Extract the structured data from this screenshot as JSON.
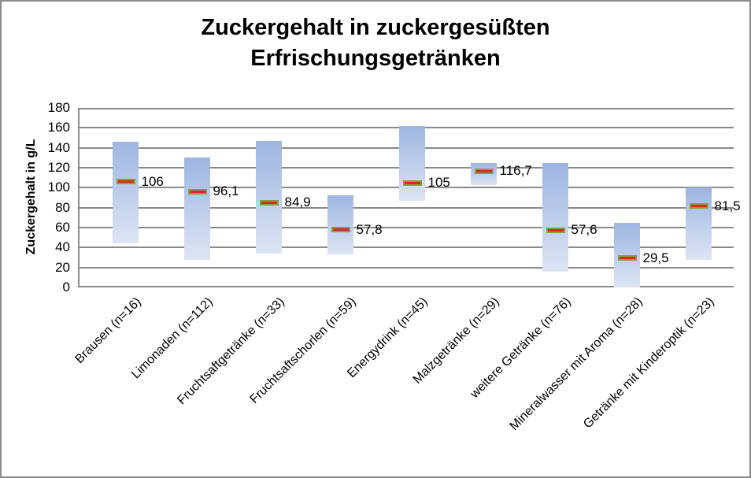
{
  "chart_data": {
    "type": "bar",
    "subtype": "floating-range-bars-with-median-markers",
    "title": "Zuckergehalt in zuckergesüßten Erfrischungsgetränken",
    "xlabel": "",
    "ylabel": "Zuckergehalt in g/L",
    "ylim": [
      0,
      180
    ],
    "yticks": [
      0,
      20,
      40,
      60,
      80,
      100,
      120,
      140,
      160,
      180
    ],
    "grid": true,
    "legend": false,
    "categories": [
      "Brausen (n=16)",
      "Limonaden (n=112)",
      "Fruchtsaftgetränke (n=33)",
      "Fruchtsaftschorlen (n=59)",
      "Energydrink (n=45)",
      "Malzgetränke (n=29)",
      "weitere Getränke  (n=76)",
      "Mineralwasser mit Aroma (n=28)",
      "Getränke mit Kinderoptik (n=23)"
    ],
    "series": [
      {
        "name": "range_low",
        "values": [
          44,
          28,
          34,
          33,
          87,
          103,
          16,
          0,
          28
        ]
      },
      {
        "name": "range_high",
        "values": [
          146,
          130,
          147,
          92,
          162,
          125,
          125,
          65,
          100
        ]
      },
      {
        "name": "median",
        "values": [
          106,
          96.1,
          84.9,
          57.8,
          105,
          116.7,
          57.6,
          29.5,
          81.5
        ]
      }
    ],
    "point_labels": [
      "106",
      "96,1",
      "84,9",
      "57,8",
      "105",
      "116,7",
      "57,6",
      "29,5",
      "81,5"
    ]
  },
  "colors": {
    "bar_gradient_top": "#9db5e1",
    "bar_gradient_bottom": "#dde5f4",
    "marker_fill": "#dc291a",
    "marker_border": "#85a03c",
    "gridline": "#8a8a8a",
    "figure_border": "#8a8a8a",
    "text": "#000000"
  }
}
